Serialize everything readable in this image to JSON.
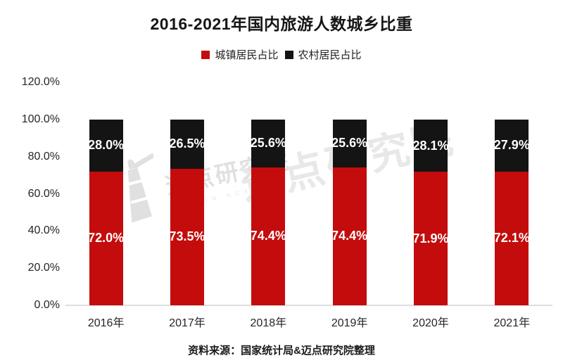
{
  "title": "2016-2021年国内旅游人数城乡比重",
  "source": "资料来源：国家统计局&迈点研究院整理",
  "watermark": {
    "brand": "迈点研究院",
    "brand_sub": "MEADIN ACADEMY"
  },
  "colors": {
    "urban": "#c40c0c",
    "rural": "#141414",
    "axis_line": "#dedede",
    "watermark_gray": "#e5e5e5"
  },
  "chart_data": {
    "type": "bar",
    "stacked": true,
    "title": "2016-2021年国内旅游人数城乡比重",
    "categories": [
      "2016年",
      "2017年",
      "2018年",
      "2019年",
      "2020年",
      "2021年"
    ],
    "series": [
      {
        "name": "城镇居民占比",
        "color": "#c40c0c",
        "values": [
          72.0,
          73.5,
          74.4,
          74.4,
          71.9,
          72.1
        ],
        "labels": [
          "72.0%",
          "73.5%",
          "74.4%",
          "74.4%",
          "71.9%",
          "72.1%"
        ]
      },
      {
        "name": "农村居民占比",
        "color": "#141414",
        "values": [
          28.0,
          26.5,
          25.6,
          25.6,
          28.1,
          27.9
        ],
        "labels": [
          "28.0%",
          "26.5%",
          "25.6%",
          "25.6%",
          "28.1%",
          "27.9%"
        ]
      }
    ],
    "xlabel": "",
    "ylabel": "",
    "y_ticks": [
      "120.0%",
      "100.0%",
      "80.0%",
      "60.0%",
      "40.0%",
      "20.0%",
      "0.0%"
    ],
    "ylim": [
      0,
      120
    ],
    "grid": false,
    "legend_position": "top",
    "value_labels": "inside-center-white-bold"
  }
}
